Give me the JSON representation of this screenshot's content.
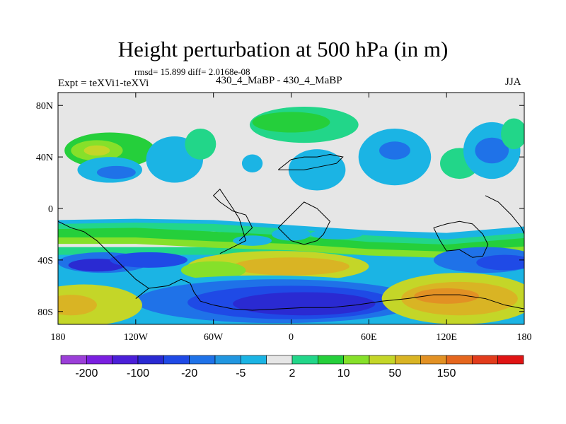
{
  "chart_data": {
    "type": "heatmap",
    "title": "Height perturbation at 500 hPa (in m)",
    "stats_label": "rmsd= 15.899 diff= 2.0168e-08",
    "left_label": "Expt = teXVi1-teXVi",
    "center_label": "430_4_MaBP - 430_4_MaBP",
    "right_label": "JJA",
    "x_ticks": [
      {
        "value": -180,
        "label": "180"
      },
      {
        "value": -120,
        "label": "120W"
      },
      {
        "value": -60,
        "label": "60W"
      },
      {
        "value": 0,
        "label": "0"
      },
      {
        "value": 60,
        "label": "60E"
      },
      {
        "value": 120,
        "label": "120E"
      },
      {
        "value": 180,
        "label": "180"
      }
    ],
    "y_ticks": [
      {
        "value": 80,
        "label": "80N"
      },
      {
        "value": 40,
        "label": "40N"
      },
      {
        "value": 0,
        "label": "0"
      },
      {
        "value": -40,
        "label": "40S"
      },
      {
        "value": -80,
        "label": "80S"
      }
    ],
    "xlim": [
      -180,
      180
    ],
    "ylim": [
      -90,
      90
    ],
    "colorbar": {
      "colors": [
        "#9b3fd8",
        "#7a1fe0",
        "#4b1fd8",
        "#2a2ad2",
        "#1f4ae6",
        "#1f72e8",
        "#2196e0",
        "#1bb4e4",
        "#e6e6e6",
        "#22d689",
        "#25cf3b",
        "#86e02a",
        "#c4d628",
        "#d9b424",
        "#e29124",
        "#e5661e",
        "#e23c1c",
        "#e01414"
      ],
      "labels": [
        {
          "after_index": 0,
          "label": "-200"
        },
        {
          "after_index": 2,
          "label": "-100"
        },
        {
          "after_index": 4,
          "label": "-20"
        },
        {
          "after_index": 6,
          "label": "-5"
        },
        {
          "after_index": 8,
          "label": "2"
        },
        {
          "after_index": 10,
          "label": "10"
        },
        {
          "after_index": 12,
          "label": "50"
        },
        {
          "after_index": 14,
          "label": "150"
        }
      ]
    },
    "regions": [
      {
        "kind": "band",
        "color": "#1bb4e4",
        "lat": [
          [
            -180,
            -12
          ],
          [
            -120,
            -11
          ],
          [
            -60,
            -12
          ],
          [
            0,
            -16
          ],
          [
            60,
            -20
          ],
          [
            120,
            -22
          ],
          [
            180,
            -17
          ]
        ],
        "width": 6
      },
      {
        "kind": "band",
        "color": "#22d689",
        "lat": [
          [
            -180,
            -15
          ],
          [
            -120,
            -14
          ],
          [
            -60,
            -15
          ],
          [
            0,
            -19
          ],
          [
            60,
            -24
          ],
          [
            120,
            -27
          ],
          [
            180,
            -22
          ]
        ],
        "width": 6
      },
      {
        "kind": "band",
        "color": "#25cf3b",
        "lat": [
          [
            -180,
            -20
          ],
          [
            -120,
            -19
          ],
          [
            -60,
            -22
          ],
          [
            0,
            -25
          ],
          [
            60,
            -30
          ],
          [
            120,
            -32
          ],
          [
            180,
            -27
          ]
        ],
        "width": 8
      },
      {
        "kind": "band",
        "color": "#86e02a",
        "lat": [
          [
            -180,
            -25
          ],
          [
            -120,
            -25
          ],
          [
            -60,
            -28
          ],
          [
            0,
            -30
          ],
          [
            60,
            -34
          ],
          [
            120,
            -36
          ],
          [
            180,
            -32
          ]
        ],
        "width": 5
      },
      {
        "kind": "blob",
        "color": "#1f72e8",
        "cx": -145,
        "cy": -42,
        "rx": 35,
        "ry": 8
      },
      {
        "kind": "blob",
        "color": "#2a2ad2",
        "cx": -150,
        "cy": -44,
        "rx": 22,
        "ry": 5
      },
      {
        "kind": "blob",
        "color": "#1f4ae6",
        "cx": -110,
        "cy": -40,
        "rx": 30,
        "ry": 6
      },
      {
        "kind": "blob",
        "color": "#c4d628",
        "cx": -10,
        "cy": -45,
        "rx": 70,
        "ry": 12
      },
      {
        "kind": "blob",
        "color": "#d9b424",
        "cx": 0,
        "cy": -45,
        "rx": 45,
        "ry": 7
      },
      {
        "kind": "blob",
        "color": "#86e02a",
        "cx": -60,
        "cy": -48,
        "rx": 25,
        "ry": 7
      },
      {
        "kind": "blob",
        "color": "#1f72e8",
        "cx": 150,
        "cy": -40,
        "rx": 40,
        "ry": 10
      },
      {
        "kind": "blob",
        "color": "#1f4ae6",
        "cx": 165,
        "cy": -42,
        "rx": 22,
        "ry": 6
      },
      {
        "kind": "blob",
        "color": "#1bb4e4",
        "cx": -20,
        "cy": -72,
        "rx": 130,
        "ry": 20
      },
      {
        "kind": "blob",
        "color": "#1f72e8",
        "cx": -10,
        "cy": -72,
        "rx": 110,
        "ry": 17
      },
      {
        "kind": "blob",
        "color": "#1f4ae6",
        "cx": 0,
        "cy": -73,
        "rx": 80,
        "ry": 13
      },
      {
        "kind": "blob",
        "color": "#2a2ad2",
        "cx": 10,
        "cy": -74,
        "rx": 55,
        "ry": 9
      },
      {
        "kind": "blob",
        "color": "#c4d628",
        "cx": -160,
        "cy": -75,
        "rx": 45,
        "ry": 16
      },
      {
        "kind": "blob",
        "color": "#d9b424",
        "cx": -170,
        "cy": -75,
        "rx": 20,
        "ry": 8
      },
      {
        "kind": "blob",
        "color": "#c4d628",
        "cx": 130,
        "cy": -70,
        "rx": 60,
        "ry": 20
      },
      {
        "kind": "blob",
        "color": "#d9b424",
        "cx": 130,
        "cy": -70,
        "rx": 45,
        "ry": 13
      },
      {
        "kind": "blob",
        "color": "#e29124",
        "cx": 120,
        "cy": -68,
        "rx": 25,
        "ry": 6
      },
      {
        "kind": "blob",
        "color": "#25cf3b",
        "cx": -140,
        "cy": 45,
        "rx": 35,
        "ry": 14
      },
      {
        "kind": "blob",
        "color": "#86e02a",
        "cx": -150,
        "cy": 45,
        "rx": 20,
        "ry": 8
      },
      {
        "kind": "blob",
        "color": "#c4d628",
        "cx": -150,
        "cy": 45,
        "rx": 10,
        "ry": 4
      },
      {
        "kind": "blob",
        "color": "#1bb4e4",
        "cx": -140,
        "cy": 30,
        "rx": 25,
        "ry": 10
      },
      {
        "kind": "blob",
        "color": "#1f72e8",
        "cx": -135,
        "cy": 28,
        "rx": 15,
        "ry": 5
      },
      {
        "kind": "blob",
        "color": "#1bb4e4",
        "cx": -90,
        "cy": 38,
        "rx": 22,
        "ry": 18
      },
      {
        "kind": "blob",
        "color": "#22d689",
        "cx": -70,
        "cy": 50,
        "rx": 12,
        "ry": 12
      },
      {
        "kind": "blob",
        "color": "#1bb4e4",
        "cx": -30,
        "cy": 35,
        "rx": 8,
        "ry": 7
      },
      {
        "kind": "blob",
        "color": "#22d689",
        "cx": 10,
        "cy": 65,
        "rx": 42,
        "ry": 14
      },
      {
        "kind": "blob",
        "color": "#25cf3b",
        "cx": 0,
        "cy": 67,
        "rx": 30,
        "ry": 8
      },
      {
        "kind": "blob",
        "color": "#1bb4e4",
        "cx": 20,
        "cy": 30,
        "rx": 22,
        "ry": 16
      },
      {
        "kind": "blob",
        "color": "#1bb4e4",
        "cx": 80,
        "cy": 40,
        "rx": 28,
        "ry": 22
      },
      {
        "kind": "blob",
        "color": "#1f72e8",
        "cx": 80,
        "cy": 45,
        "rx": 12,
        "ry": 7
      },
      {
        "kind": "blob",
        "color": "#22d689",
        "cx": 130,
        "cy": 35,
        "rx": 15,
        "ry": 12
      },
      {
        "kind": "blob",
        "color": "#1bb4e4",
        "cx": 155,
        "cy": 45,
        "rx": 22,
        "ry": 22
      },
      {
        "kind": "blob",
        "color": "#1f72e8",
        "cx": 155,
        "cy": 45,
        "rx": 13,
        "ry": 10
      },
      {
        "kind": "blob",
        "color": "#22d689",
        "cx": 172,
        "cy": 58,
        "rx": 10,
        "ry": 12
      },
      {
        "kind": "blob",
        "color": "#1bb4e4",
        "cx": 0,
        "cy": -20,
        "rx": 15,
        "ry": 5
      },
      {
        "kind": "blob",
        "color": "#1bb4e4",
        "cx": -30,
        "cy": -25,
        "rx": 15,
        "ry": 4
      },
      {
        "kind": "blob",
        "color": "#1bb4e4",
        "cx": 35,
        "cy": -20,
        "rx": 20,
        "ry": 4
      }
    ],
    "coastlines": [
      [
        [
          -120,
          -70
        ],
        [
          -110,
          -62
        ],
        [
          -95,
          -60
        ],
        [
          -85,
          -55
        ],
        [
          -78,
          -58
        ],
        [
          -75,
          -65
        ],
        [
          -70,
          -72
        ],
        [
          -60,
          -75
        ],
        [
          -45,
          -78
        ],
        [
          -30,
          -79
        ],
        [
          -10,
          -78
        ],
        [
          10,
          -77
        ],
        [
          30,
          -77
        ],
        [
          50,
          -75
        ],
        [
          70,
          -72
        ],
        [
          90,
          -70
        ],
        [
          110,
          -67
        ],
        [
          130,
          -67
        ],
        [
          150,
          -70
        ],
        [
          165,
          -75
        ],
        [
          180,
          -78
        ]
      ],
      [
        [
          -40,
          -25
        ],
        [
          -35,
          -20
        ],
        [
          -30,
          -15
        ],
        [
          -35,
          -5
        ],
        [
          -45,
          -2
        ],
        [
          -55,
          5
        ],
        [
          -60,
          10
        ],
        [
          -55,
          15
        ],
        [
          -45,
          0
        ],
        [
          -40,
          -8
        ],
        [
          -35,
          -25
        ],
        [
          -45,
          -30
        ],
        [
          -55,
          -35
        ]
      ],
      [
        [
          -10,
          -15
        ],
        [
          0,
          -5
        ],
        [
          5,
          0
        ],
        [
          10,
          5
        ],
        [
          20,
          0
        ],
        [
          25,
          -5
        ],
        [
          30,
          -10
        ],
        [
          25,
          -20
        ],
        [
          20,
          -25
        ],
        [
          10,
          -28
        ],
        [
          0,
          -25
        ],
        [
          -10,
          -15
        ]
      ],
      [
        [
          -10,
          30
        ],
        [
          0,
          38
        ],
        [
          10,
          40
        ],
        [
          20,
          40
        ],
        [
          30,
          42
        ],
        [
          40,
          40
        ],
        [
          35,
          35
        ],
        [
          20,
          32
        ],
        [
          10,
          30
        ],
        [
          -10,
          30
        ]
      ],
      [
        [
          110,
          -15
        ],
        [
          120,
          -12
        ],
        [
          130,
          -10
        ],
        [
          140,
          -12
        ],
        [
          148,
          -20
        ],
        [
          152,
          -28
        ],
        [
          148,
          -37
        ],
        [
          140,
          -38
        ],
        [
          130,
          -32
        ],
        [
          120,
          -33
        ],
        [
          115,
          -25
        ],
        [
          110,
          -15
        ]
      ],
      [
        [
          150,
          10
        ],
        [
          160,
          5
        ],
        [
          170,
          -5
        ],
        [
          178,
          -15
        ],
        [
          180,
          -20
        ]
      ],
      [
        [
          -180,
          -10
        ],
        [
          -170,
          -15
        ],
        [
          -160,
          -18
        ],
        [
          -150,
          -25
        ],
        [
          -140,
          -35
        ],
        [
          -130,
          -45
        ],
        [
          -120,
          -55
        ],
        [
          -110,
          -62
        ]
      ]
    ]
  }
}
